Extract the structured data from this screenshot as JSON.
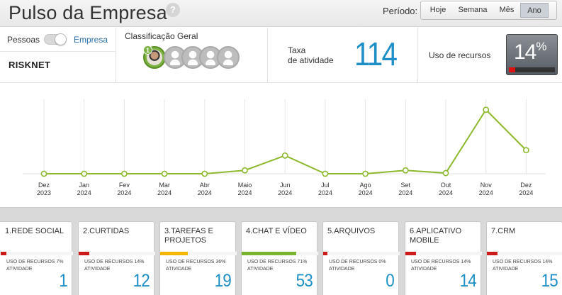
{
  "header": {
    "title": "Pulso da Empresa",
    "help_icon": "?",
    "period_label": "Período:",
    "period_options": [
      "Hoje",
      "Semana",
      "Mês",
      "Ano"
    ],
    "period_selected": "Ano"
  },
  "summary": {
    "toggle_left": "Pessoas",
    "toggle_right": "Empresa",
    "company": "RISKNET",
    "ranking_title": "Classificação Geral",
    "ranking_first_position": "1",
    "activity_label_line1": "Taxa",
    "activity_label_line2": "de atividade",
    "activity_value": "114",
    "usage_label": "Uso de recursos",
    "usage_value": "14",
    "usage_unit": "%",
    "usage_fraction": 0.14,
    "usage_color": "#dd1111"
  },
  "chart_data": {
    "type": "line",
    "x": [
      "Dez\n2023",
      "Jan\n2024",
      "Fev\n2024",
      "Mar\n2024",
      "Abr\n2024",
      "Maio\n2024",
      "Jun\n2024",
      "Jul\n2024",
      "Ago\n2024",
      "Set\n2024",
      "Out\n2024",
      "Nov\n2024",
      "Dez\n2024"
    ],
    "x_labels_line1": [
      "Dez",
      "Jan",
      "Fev",
      "Mar",
      "Abr",
      "Maio",
      "Jun",
      "Jul",
      "Ago",
      "Set",
      "Out",
      "Nov",
      "Dez"
    ],
    "x_labels_line2": [
      "2023",
      "2024",
      "2024",
      "2024",
      "2024",
      "2024",
      "2024",
      "2024",
      "2024",
      "2024",
      "2024",
      "2024",
      "2024"
    ],
    "series": [
      {
        "values": [
          0,
          0,
          0,
          0,
          0,
          5,
          27,
          0,
          0,
          5,
          1,
          95,
          35
        ],
        "color": "#8db92e"
      }
    ],
    "ylim": [
      0,
      100
    ],
    "grid": "vertical"
  },
  "cards": [
    {
      "number": "1.",
      "title": "REDE SOCIAL",
      "usage_text": "USO DE RECURSOS 7%",
      "activity_text": "ATIVIDADE",
      "value": "1",
      "usage_pct": 7,
      "bar_color": "#cc1a1a"
    },
    {
      "number": "2.",
      "title": "CURTIDAS",
      "usage_text": "USO DE RECURSOS 14%",
      "activity_text": "ATIVIDADE",
      "value": "12",
      "usage_pct": 14,
      "bar_color": "#cc1a1a"
    },
    {
      "number": "3.",
      "title": "TAREFAS E PROJETOS",
      "usage_text": "USO DE RECURSOS 36%",
      "activity_text": "ATIVIDADE",
      "value": "19",
      "usage_pct": 36,
      "bar_color": "#f2b600"
    },
    {
      "number": "4.",
      "title": "CHAT E VÍDEO",
      "usage_text": "USO DE RECURSOS 71%",
      "activity_text": "ATIVIDADE",
      "value": "53",
      "usage_pct": 71,
      "bar_color": "#7ab32e"
    },
    {
      "number": "5.",
      "title": "ARQUIVOS",
      "usage_text": "USO DE RECURSOS 0%",
      "activity_text": "ATIVIDADE",
      "value": "0",
      "usage_pct": 0,
      "bar_color": "#cc1a1a"
    },
    {
      "number": "6.",
      "title": "APLICATIVO MOBILE",
      "usage_text": "USO DE RECURSOS 14%",
      "activity_text": "ATIVIDADE",
      "value": "14",
      "usage_pct": 14,
      "bar_color": "#cc1a1a"
    },
    {
      "number": "7.",
      "title": "CRM",
      "usage_text": "USO DE RECURSOS 14%",
      "activity_text": "ATIVIDADE",
      "value": "15",
      "usage_pct": 14,
      "bar_color": "#cc1a1a"
    }
  ]
}
